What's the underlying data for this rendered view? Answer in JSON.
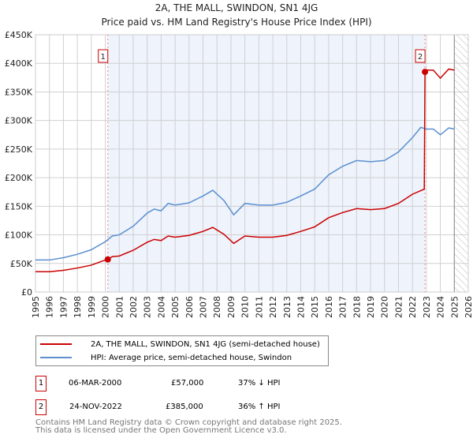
{
  "chart_data": {
    "type": "line",
    "title": "2A, THE MALL, SWINDON, SN1 4JG",
    "subtitle": "Price paid vs. HM Land Registry's House Price Index (HPI)",
    "xlabel": "",
    "ylabel": "",
    "xlim": [
      1995,
      2026
    ],
    "ylim": [
      0,
      450000
    ],
    "x_ticks": [
      "1995",
      "1996",
      "1997",
      "1998",
      "1999",
      "2000",
      "2001",
      "2002",
      "2003",
      "2004",
      "2005",
      "2006",
      "2007",
      "2008",
      "2009",
      "2010",
      "2011",
      "2012",
      "2013",
      "2014",
      "2015",
      "2016",
      "2017",
      "2018",
      "2019",
      "2020",
      "2021",
      "2022",
      "2023",
      "2024",
      "2025",
      "2026"
    ],
    "y_ticks": [
      {
        "v": 0,
        "label": "£0"
      },
      {
        "v": 50000,
        "label": "£50K"
      },
      {
        "v": 100000,
        "label": "£100K"
      },
      {
        "v": 150000,
        "label": "£150K"
      },
      {
        "v": 200000,
        "label": "£200K"
      },
      {
        "v": 250000,
        "label": "£250K"
      },
      {
        "v": 300000,
        "label": "£300K"
      },
      {
        "v": 350000,
        "label": "£350K"
      },
      {
        "v": 400000,
        "label": "£400K"
      },
      {
        "v": 450000,
        "label": "£450K"
      }
    ],
    "grid": true,
    "series": [
      {
        "name": "2A, THE MALL, SWINDON, SN1 4JG (semi-detached house)",
        "color": "#cc0000",
        "x": [
          1995,
          1996,
          1997,
          1998,
          1999,
          2000,
          2000.18,
          2000.5,
          2001,
          2002,
          2003,
          2003.5,
          2004,
          2004.5,
          2005,
          2006,
          2007,
          2007.7,
          2008.5,
          2009.2,
          2010,
          2011,
          2012,
          2013,
          2014,
          2015,
          2016,
          2017,
          2018,
          2019,
          2020,
          2021,
          2022,
          2022.85,
          2022.9,
          2023,
          2023.5,
          2024,
          2024.6,
          2025
        ],
        "y": [
          35500,
          35500,
          38000,
          42000,
          47000,
          56000,
          57000,
          62000,
          63000,
          73000,
          87000,
          92000,
          90000,
          98000,
          96000,
          99000,
          106000,
          113000,
          101000,
          85000,
          98000,
          96000,
          96000,
          99000,
          106000,
          114000,
          130000,
          139000,
          146000,
          144000,
          146000,
          155000,
          171000,
          180000,
          385000,
          388000,
          388000,
          374000,
          390000,
          388000
        ]
      },
      {
        "name": "HPI: Average price, semi-detached house, Swindon",
        "color": "#5b8fd0",
        "x": [
          1995,
          1996,
          1997,
          1998,
          1999,
          2000,
          2000.5,
          2001,
          2002,
          2003,
          2003.5,
          2004,
          2004.5,
          2005,
          2006,
          2007,
          2007.7,
          2008.5,
          2009.2,
          2010,
          2011,
          2012,
          2013,
          2014,
          2015,
          2016,
          2017,
          2018,
          2019,
          2020,
          2021,
          2022,
          2022.6,
          2023,
          2023.5,
          2024,
          2024.6,
          2025
        ],
        "y": [
          56000,
          56000,
          60000,
          66000,
          74000,
          88000,
          98000,
          100000,
          115000,
          138000,
          145000,
          142000,
          155000,
          152000,
          156000,
          168000,
          178000,
          160000,
          135000,
          155000,
          152000,
          152000,
          157000,
          168000,
          180000,
          205000,
          220000,
          230000,
          228000,
          230000,
          245000,
          270000,
          288000,
          285000,
          285000,
          275000,
          287000,
          285000
        ]
      }
    ],
    "annotations": [
      {
        "label": "1",
        "x": 2000.18,
        "y": 57000,
        "date": "06-MAR-2000",
        "price": "£57,000",
        "hpi": "37% ↓ HPI"
      },
      {
        "label": "2",
        "x": 2022.9,
        "y": 385000,
        "date": "24-NOV-2022",
        "price": "£385,000",
        "hpi": "36% ↑ HPI"
      }
    ],
    "shaded_range": [
      2000.18,
      2022.9
    ],
    "hatched_from": 2025.0,
    "legend_placement": "below"
  },
  "footer": [
    "Contains HM Land Registry data © Crown copyright and database right 2025.",
    "This data is licensed under the Open Government Licence v3.0."
  ]
}
